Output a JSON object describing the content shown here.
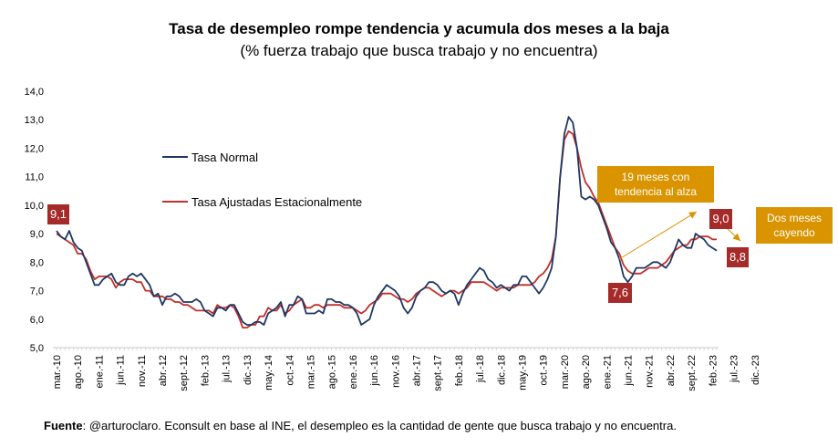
{
  "chart_data": {
    "type": "line",
    "title": "Tasa de desempleo rompe tendencia y acumula dos meses a la baja",
    "subtitle": "(% fuerza trabajo que busca trabajo y no encuentra)",
    "ylim": [
      5.0,
      14.0
    ],
    "yticks": [
      "5,0",
      "6,0",
      "7,0",
      "8,0",
      "9,0",
      "10,0",
      "11,0",
      "12,0",
      "13,0",
      "14,0"
    ],
    "xticks": [
      "mar.-10",
      "ago.-10",
      "ene.-11",
      "jun.-11",
      "nov.-11",
      "abr.-12",
      "sept.-12",
      "feb.-13",
      "jul.-13",
      "dic.-13",
      "may.-14",
      "oct.-14",
      "mar.-15",
      "ago.-15",
      "ene.-16",
      "jun.-16",
      "nov.-16",
      "abr.-17",
      "sept.-17",
      "feb.-18",
      "jul.-18",
      "dic.-18",
      "may.-19",
      "oct.-19",
      "mar.-20",
      "ago.-20",
      "ene.-21",
      "jun.-21",
      "nov.-21",
      "abr.-22",
      "sept.-22",
      "feb.-23",
      "jul.-23",
      "dic.-23"
    ],
    "grid": false,
    "legend_position": "upper-left",
    "series": [
      {
        "name": "Tasa Normal",
        "color": "#1f3864",
        "values": [
          9.1,
          8.9,
          8.8,
          9.1,
          8.7,
          8.5,
          8.4,
          8.0,
          7.6,
          7.2,
          7.2,
          7.4,
          7.5,
          7.6,
          7.3,
          7.2,
          7.2,
          7.5,
          7.6,
          7.5,
          7.6,
          7.4,
          7.2,
          6.8,
          6.9,
          6.5,
          6.8,
          6.8,
          6.9,
          6.8,
          6.6,
          6.6,
          6.6,
          6.7,
          6.6,
          6.3,
          6.2,
          6.1,
          6.4,
          6.4,
          6.3,
          6.5,
          6.5,
          6.2,
          5.9,
          5.8,
          5.8,
          5.9,
          5.9,
          5.8,
          6.2,
          6.3,
          6.4,
          6.6,
          6.1,
          6.5,
          6.5,
          6.8,
          6.7,
          6.2,
          6.2,
          6.2,
          6.3,
          6.2,
          6.7,
          6.7,
          6.6,
          6.6,
          6.5,
          6.5,
          6.4,
          6.2,
          5.8,
          5.9,
          6.0,
          6.5,
          6.8,
          7.0,
          7.2,
          7.1,
          7.0,
          6.8,
          6.4,
          6.2,
          6.4,
          6.8,
          7.0,
          7.1,
          7.3,
          7.3,
          7.2,
          7.0,
          6.9,
          7.0,
          6.9,
          6.5,
          6.9,
          7.2,
          7.4,
          7.6,
          7.8,
          7.7,
          7.4,
          7.3,
          7.1,
          7.2,
          7.1,
          7.0,
          7.2,
          7.2,
          7.5,
          7.5,
          7.3,
          7.1,
          6.9,
          7.1,
          7.4,
          7.8,
          8.9,
          11.0,
          12.5,
          13.1,
          12.9,
          12.0,
          10.3,
          10.2,
          10.3,
          10.2,
          10.0,
          9.6,
          9.2,
          8.7,
          8.5,
          8.1,
          7.5,
          7.3,
          7.5,
          7.8,
          7.8,
          7.8,
          7.9,
          8.0,
          8.0,
          7.9,
          7.8,
          8.0,
          8.4,
          8.8,
          8.6,
          8.5,
          8.5,
          9.0,
          8.9,
          8.8,
          8.6,
          8.5,
          8.4
        ]
      },
      {
        "name": "Tasa Ajustadas Estacionalmente",
        "color": "#c0302b",
        "values": [
          9.0,
          8.9,
          8.8,
          8.7,
          8.6,
          8.3,
          8.3,
          8.1,
          7.7,
          7.4,
          7.5,
          7.5,
          7.5,
          7.4,
          7.1,
          7.3,
          7.4,
          7.4,
          7.4,
          7.3,
          7.3,
          7.0,
          7.0,
          6.8,
          6.8,
          6.8,
          6.7,
          6.7,
          6.6,
          6.6,
          6.5,
          6.5,
          6.4,
          6.3,
          6.3,
          6.3,
          6.3,
          6.2,
          6.5,
          6.4,
          6.4,
          6.5,
          6.4,
          6.1,
          5.7,
          5.7,
          5.8,
          5.8,
          6.1,
          6.1,
          6.4,
          6.3,
          6.3,
          6.5,
          6.2,
          6.3,
          6.5,
          6.6,
          6.7,
          6.4,
          6.4,
          6.5,
          6.5,
          6.4,
          6.5,
          6.5,
          6.5,
          6.5,
          6.4,
          6.4,
          6.4,
          6.3,
          6.2,
          6.3,
          6.5,
          6.6,
          6.7,
          6.9,
          6.9,
          6.9,
          6.8,
          6.7,
          6.7,
          6.6,
          6.7,
          6.9,
          7.0,
          7.1,
          7.1,
          7.0,
          6.9,
          6.8,
          6.9,
          7.0,
          7.0,
          6.9,
          7.0,
          7.1,
          7.3,
          7.3,
          7.3,
          7.3,
          7.2,
          7.1,
          7.0,
          7.1,
          7.1,
          7.1,
          7.1,
          7.2,
          7.2,
          7.2,
          7.2,
          7.3,
          7.5,
          7.6,
          7.8,
          8.1,
          8.9,
          11.0,
          12.3,
          12.6,
          12.5,
          12.0,
          11.3,
          10.8,
          10.6,
          10.3,
          10.1,
          9.7,
          9.3,
          8.9,
          8.5,
          8.3,
          7.9,
          7.7,
          7.6,
          7.6,
          7.6,
          7.7,
          7.8,
          7.8,
          7.8,
          7.9,
          8.0,
          8.2,
          8.4,
          8.5,
          8.6,
          8.6,
          8.8,
          8.8,
          8.9,
          8.9,
          8.9,
          8.8,
          8.8
        ]
      }
    ],
    "annotations": {
      "start_value": "9,1",
      "trough_value": "7,6",
      "peak_value": "9,0",
      "end_value": "8,8",
      "callout_up": "19 meses con\ntendencia al alza",
      "callout_down": "Dos meses\ncayendo"
    }
  },
  "source": {
    "label": "Fuente",
    "text": ":  @arturoclaro. Econsult en base al INE, el desempleo  es la cantidad de gente que busca trabajo y no encuentra."
  },
  "colors": {
    "axis": "#c8c8c8",
    "arrow": "#d99400",
    "label_bg": "#a52a2a"
  }
}
